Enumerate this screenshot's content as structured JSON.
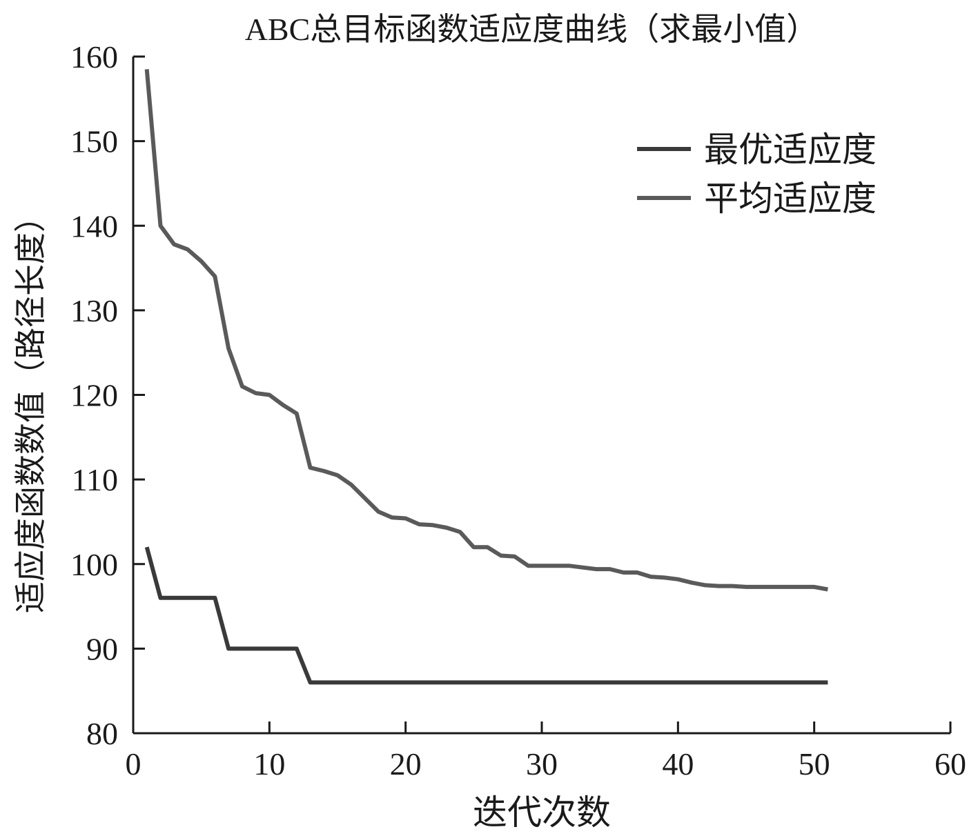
{
  "chart_data": {
    "type": "line",
    "title": "ABC总目标函数适应度曲线（求最小值）",
    "xlabel": "迭代次数",
    "ylabel": "适应度函数数值（路径长度）",
    "xlim": [
      0,
      60
    ],
    "ylim": [
      80,
      160
    ],
    "xticks": [
      0,
      10,
      20,
      30,
      40,
      50,
      60
    ],
    "yticks": [
      80,
      90,
      100,
      110,
      120,
      130,
      140,
      150,
      160
    ],
    "grid": false,
    "legend_position": "top-right",
    "x": [
      1,
      2,
      3,
      4,
      5,
      6,
      7,
      8,
      9,
      10,
      11,
      12,
      13,
      14,
      15,
      16,
      17,
      18,
      19,
      20,
      21,
      22,
      23,
      24,
      25,
      26,
      27,
      28,
      29,
      30,
      31,
      32,
      33,
      34,
      35,
      36,
      37,
      38,
      39,
      40,
      41,
      42,
      43,
      44,
      45,
      46,
      47,
      48,
      49,
      50,
      51
    ],
    "series": [
      {
        "name": "最优适应度",
        "color": "#3a3a3a",
        "values": [
          102,
          96,
          96,
          96,
          96,
          96,
          90,
          90,
          90,
          90,
          90,
          90,
          86,
          86,
          86,
          86,
          86,
          86,
          86,
          86,
          86,
          86,
          86,
          86,
          86,
          86,
          86,
          86,
          86,
          86,
          86,
          86,
          86,
          86,
          86,
          86,
          86,
          86,
          86,
          86,
          86,
          86,
          86,
          86,
          86,
          86,
          86,
          86,
          86,
          86,
          86
        ]
      },
      {
        "name": "平均适应度",
        "color": "#5a5a5a",
        "values": [
          158.5,
          140,
          137.8,
          137.2,
          135.8,
          134,
          125.5,
          121,
          120.2,
          120,
          118.8,
          117.8,
          111.4,
          111,
          110.5,
          109.4,
          107.8,
          106.2,
          105.5,
          105.4,
          104.7,
          104.6,
          104.3,
          103.8,
          102,
          102,
          101,
          100.9,
          99.8,
          99.8,
          99.8,
          99.8,
          99.6,
          99.4,
          99.4,
          99,
          99,
          98.5,
          98.4,
          98.2,
          97.8,
          97.5,
          97.4,
          97.4,
          97.3,
          97.3,
          97.3,
          97.3,
          97.3,
          97.3,
          97
        ]
      }
    ]
  }
}
